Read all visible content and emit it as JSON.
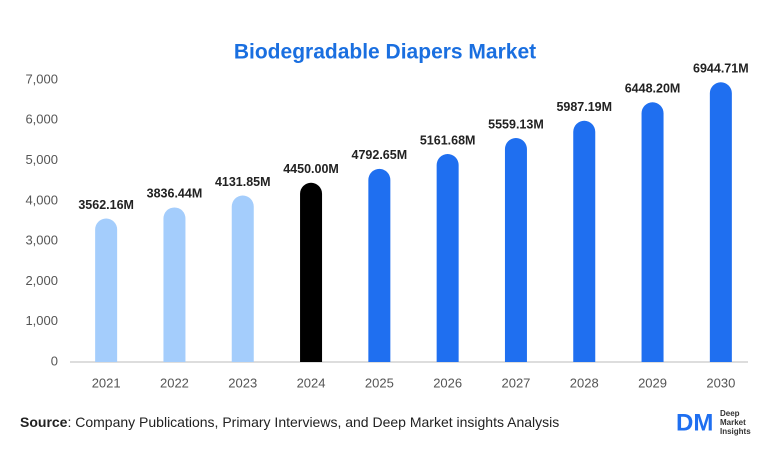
{
  "chart_data": {
    "type": "bar",
    "title": "Biodegradable Diapers Market",
    "categories": [
      "2021",
      "2022",
      "2023",
      "2024",
      "2025",
      "2026",
      "2027",
      "2028",
      "2029",
      "2030"
    ],
    "values": [
      3562.16,
      3836.44,
      4131.85,
      4450.0,
      4792.65,
      5161.68,
      5559.13,
      5987.19,
      6448.2,
      6944.71
    ],
    "value_labels": [
      "3562.16M",
      "3836.44M",
      "4131.85M",
      "4450.00M",
      "4792.65M",
      "5161.68M",
      "5559.13M",
      "5987.19M",
      "6448.20M",
      "6944.71M"
    ],
    "colors": [
      "#a4cdfc",
      "#a4cdfc",
      "#a4cdfc",
      "#000000",
      "#1f6ff0",
      "#1f6ff0",
      "#1f6ff0",
      "#1f6ff0",
      "#1f6ff0",
      "#1f6ff0"
    ],
    "ylim": [
      0,
      7000
    ],
    "yticks": [
      0,
      {
        "value": 1000,
        "label": "1,000"
      },
      {
        "value": 2000,
        "label": "2,000"
      },
      {
        "value": 3000,
        "label": "3,000"
      },
      {
        "value": 4000,
        "label": "4,000"
      },
      {
        "value": 5000,
        "label": "5,000"
      },
      {
        "value": 6000,
        "label": "6,000"
      },
      {
        "value": 7000,
        "label": "7,000"
      }
    ],
    "grid": false
  },
  "footer": {
    "source_label": "Source",
    "source_text": ": Company Publications, Primary Interviews, and Deep Market insights Analysis",
    "logo_mark": "DM",
    "logo_lines": [
      "Deep",
      "Market",
      "Insights"
    ]
  }
}
